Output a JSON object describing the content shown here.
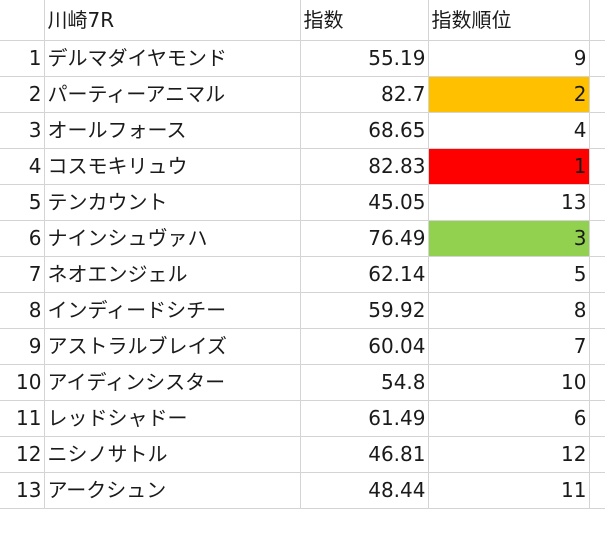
{
  "header": {
    "race": "川崎7R",
    "index": "指数",
    "rank": "指数順位"
  },
  "colors": {
    "rank1": "#ff0000",
    "rank2": "#ffc000",
    "rank3": "#92d050",
    "gridline": "#d4d4d4"
  },
  "rows": [
    {
      "no": "1",
      "name": "デルマダイヤモンド",
      "index": "55.19",
      "rank": "9",
      "fill": ""
    },
    {
      "no": "2",
      "name": "パーティーアニマル",
      "index": "82.7",
      "rank": "2",
      "fill": "#ffc000"
    },
    {
      "no": "3",
      "name": "オールフォース",
      "index": "68.65",
      "rank": "4",
      "fill": ""
    },
    {
      "no": "4",
      "name": "コスモキリュウ",
      "index": "82.83",
      "rank": "1",
      "fill": "#ff0000"
    },
    {
      "no": "5",
      "name": "テンカウント",
      "index": "45.05",
      "rank": "13",
      "fill": ""
    },
    {
      "no": "6",
      "name": "ナインシュヴァハ",
      "index": "76.49",
      "rank": "3",
      "fill": "#92d050"
    },
    {
      "no": "7",
      "name": "ネオエンジェル",
      "index": "62.14",
      "rank": "5",
      "fill": ""
    },
    {
      "no": "8",
      "name": "インディードシチー",
      "index": "59.92",
      "rank": "8",
      "fill": ""
    },
    {
      "no": "9",
      "name": "アストラルブレイズ",
      "index": "60.04",
      "rank": "7",
      "fill": ""
    },
    {
      "no": "10",
      "name": "アイディンシスター",
      "index": "54.8",
      "rank": "10",
      "fill": ""
    },
    {
      "no": "11",
      "name": "レッドシャドー",
      "index": "61.49",
      "rank": "6",
      "fill": ""
    },
    {
      "no": "12",
      "name": "ニシノサトル",
      "index": "46.81",
      "rank": "12",
      "fill": ""
    },
    {
      "no": "13",
      "name": "アークシュン",
      "index": "48.44",
      "rank": "11",
      "fill": ""
    }
  ]
}
